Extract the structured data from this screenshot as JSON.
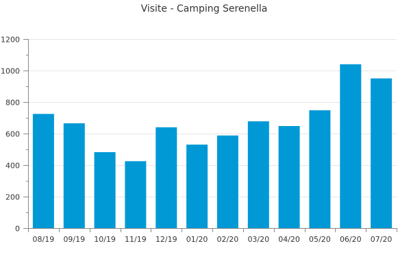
{
  "chart_data": {
    "type": "bar",
    "title": "Visite - Camping Serenella",
    "xlabel": "",
    "ylabel": "",
    "categories": [
      "08/19",
      "09/19",
      "10/19",
      "11/19",
      "12/19",
      "01/20",
      "02/20",
      "03/20",
      "04/20",
      "05/20",
      "06/20",
      "07/20"
    ],
    "values": [
      725,
      665,
      482,
      425,
      640,
      530,
      588,
      678,
      648,
      748,
      1040,
      950
    ],
    "ylim": [
      0,
      1200
    ],
    "yticks": [
      0,
      200,
      400,
      600,
      800,
      1000,
      1200
    ],
    "grid": true,
    "legend": "none",
    "bar_color": "#0099d6"
  }
}
